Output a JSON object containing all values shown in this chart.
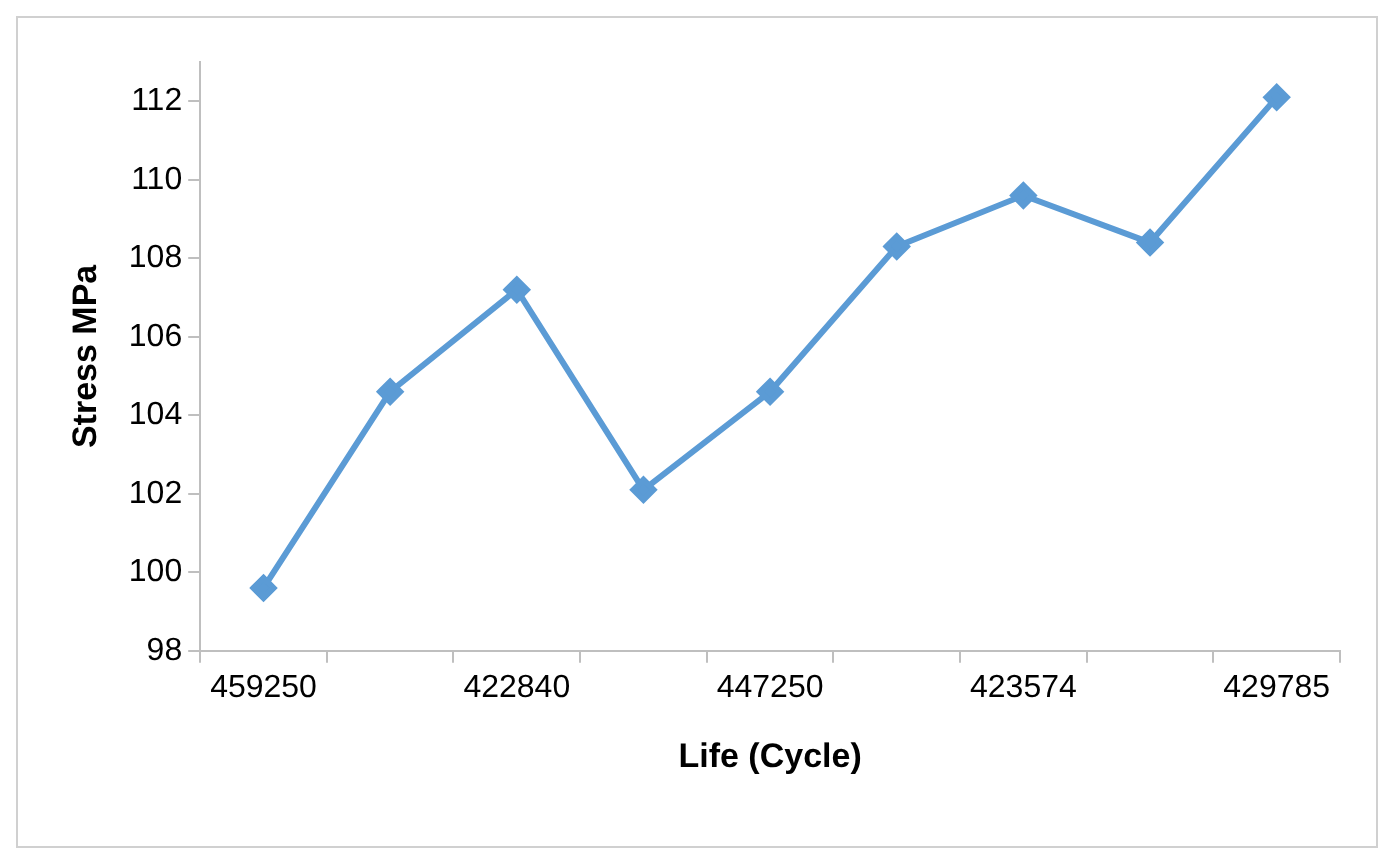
{
  "chart_data": {
    "type": "line",
    "xlabel": "Life (Cycle)",
    "ylabel": "Stress MPa",
    "categories": [
      "459250",
      null,
      "422840",
      null,
      "447250",
      null,
      "423574",
      null,
      "429785"
    ],
    "series": [
      {
        "color": "#5b9bd5",
        "values": [
          99.6,
          104.6,
          107.2,
          102.1,
          104.6,
          108.3,
          109.6,
          108.4,
          112.1
        ]
      }
    ],
    "ylim": [
      98,
      113
    ],
    "yticks": [
      98,
      100,
      102,
      104,
      106,
      108,
      110,
      112
    ],
    "grid": false,
    "legend": false,
    "marker": "diamond",
    "line_style": "solid"
  }
}
